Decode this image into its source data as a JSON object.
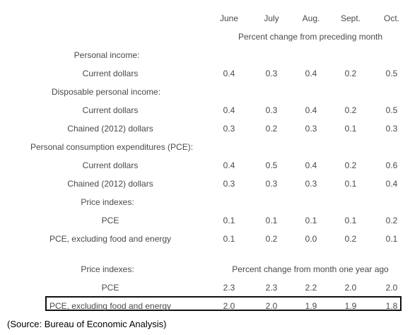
{
  "months": [
    "June",
    "July",
    "Aug.",
    "Sept.",
    "Oct."
  ],
  "section_monthly_header": "Percent change from preceding month",
  "section_annual_header": "Percent change from month one year ago",
  "rows": [
    {
      "label": "Personal income:",
      "values": []
    },
    {
      "label": "Current dollars",
      "values": [
        "0.4",
        "0.3",
        "0.4",
        "0.2",
        "0.5"
      ]
    },
    {
      "label": "Disposable personal income:",
      "values": []
    },
    {
      "label": "Current dollars",
      "values": [
        "0.4",
        "0.3",
        "0.4",
        "0.2",
        "0.5"
      ]
    },
    {
      "label": "Chained (2012) dollars",
      "values": [
        "0.3",
        "0.2",
        "0.3",
        "0.1",
        "0.3"
      ]
    },
    {
      "label": "Personal consumption expenditures (PCE):",
      "values": []
    },
    {
      "label": "Current dollars",
      "values": [
        "0.4",
        "0.5",
        "0.4",
        "0.2",
        "0.6"
      ]
    },
    {
      "label": "Chained (2012) dollars",
      "values": [
        "0.3",
        "0.3",
        "0.3",
        "0.1",
        "0.4"
      ]
    },
    {
      "label": "Price indexes:",
      "values": []
    },
    {
      "label": "PCE",
      "values": [
        "0.1",
        "0.1",
        "0.1",
        "0.1",
        "0.2"
      ]
    },
    {
      "label": "PCE, excluding food and energy",
      "values": [
        "0.1",
        "0.2",
        "0.0",
        "0.2",
        "0.1"
      ]
    }
  ],
  "annual_rows": [
    {
      "label": "Price indexes:",
      "values": []
    },
    {
      "label": "PCE",
      "values": [
        "2.3",
        "2.3",
        "2.2",
        "2.0",
        "2.0"
      ]
    },
    {
      "label": "PCE, excluding food and energy",
      "values": [
        "2.0",
        "2.0",
        "1.9",
        "1.9",
        "1.8"
      ]
    }
  ],
  "source": "(Source: Bureau of Economic Analysis)"
}
